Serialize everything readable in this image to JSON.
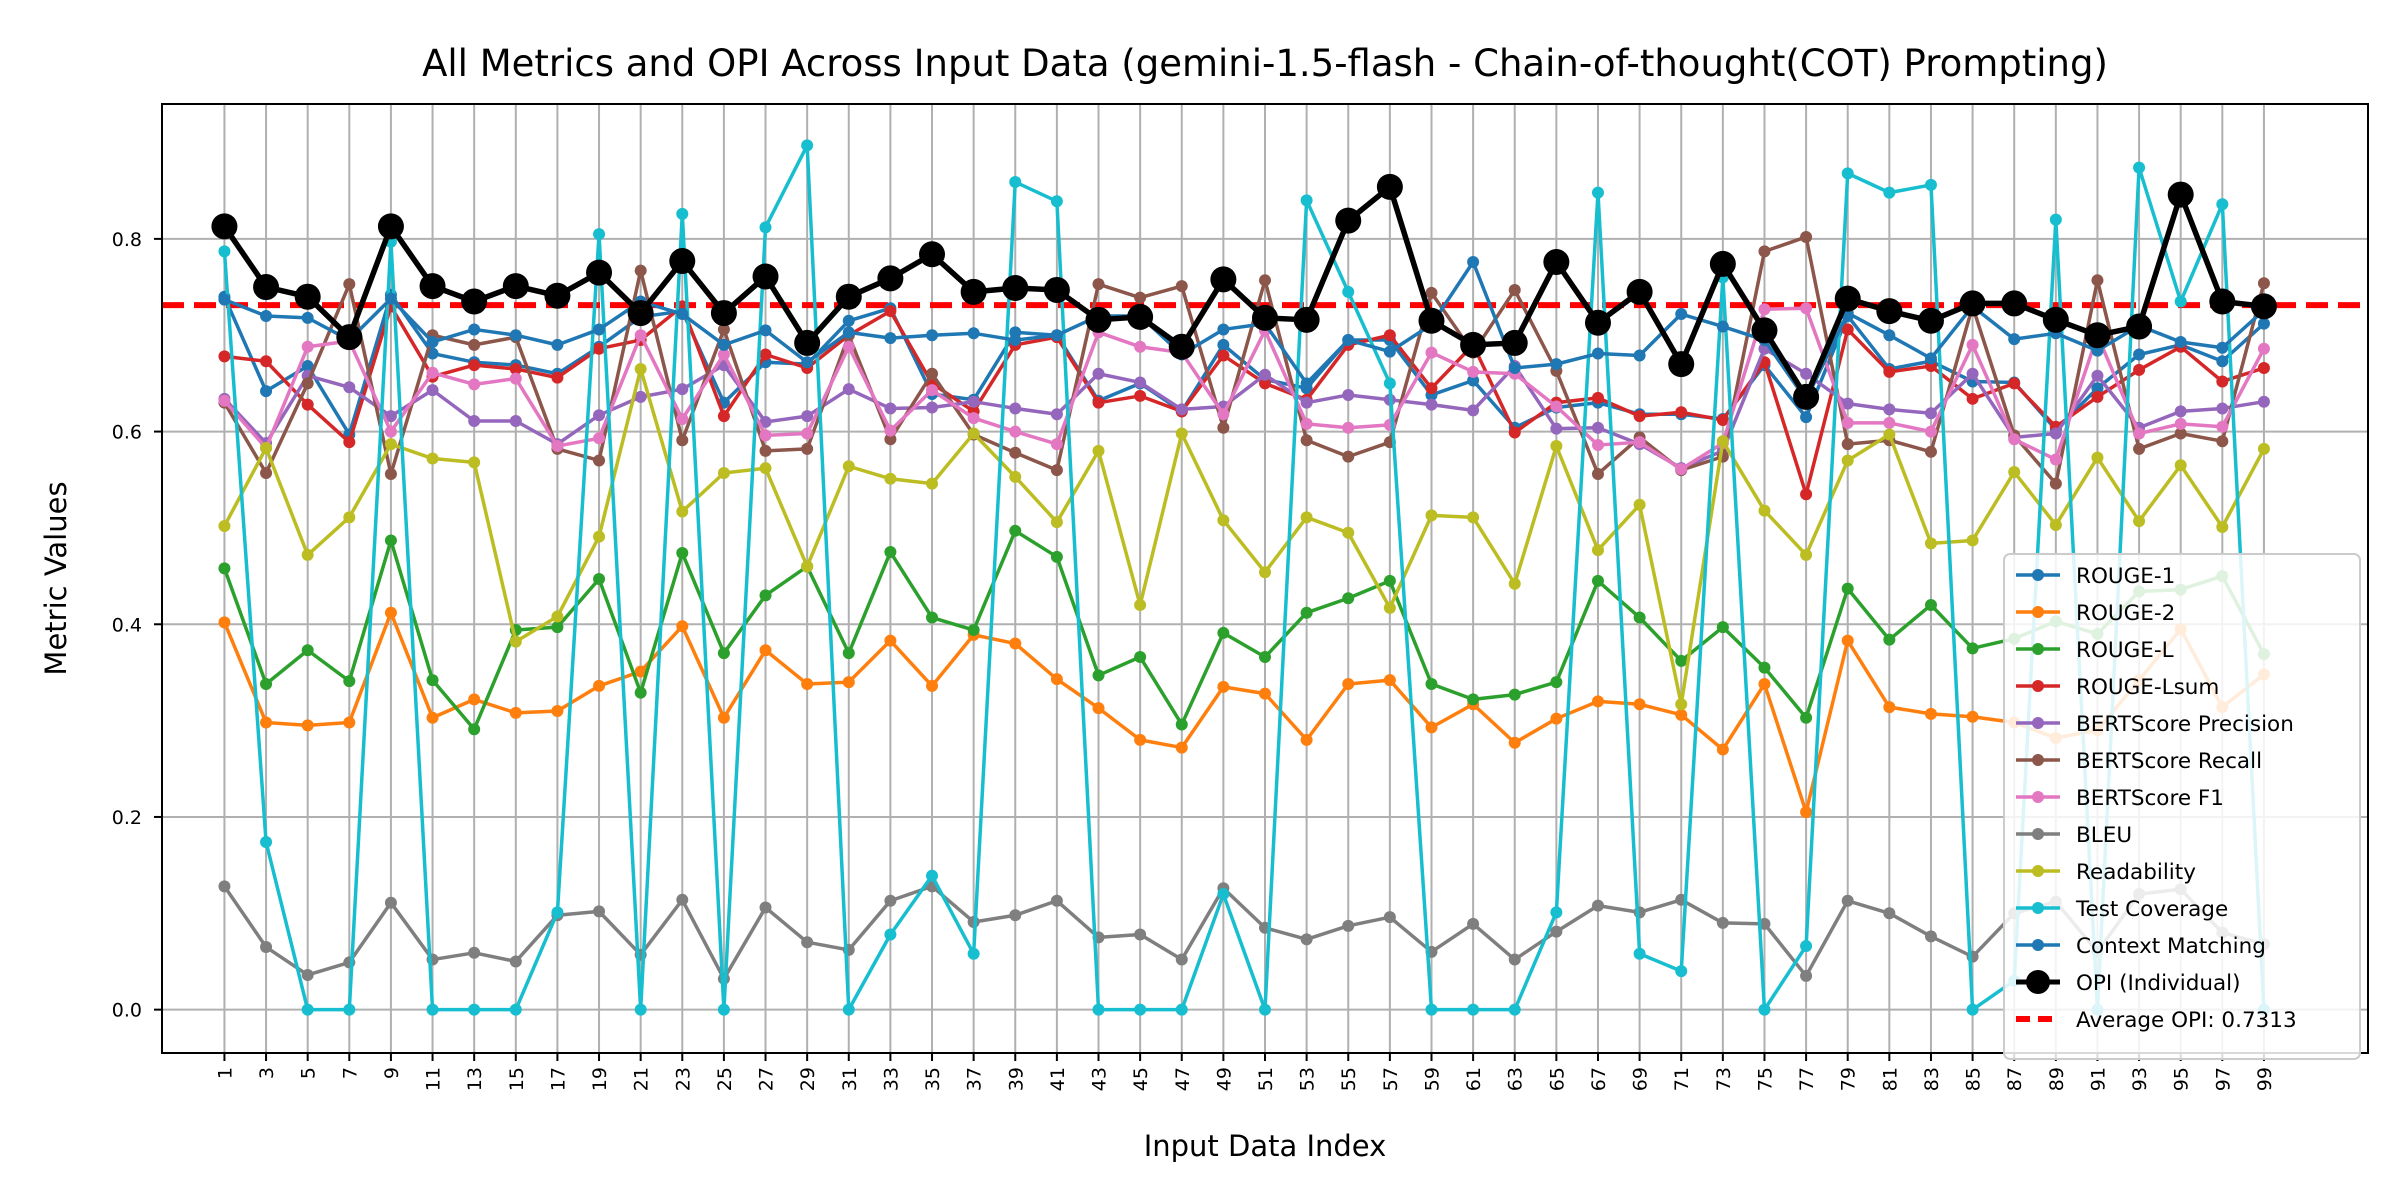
{
  "chart_data": {
    "type": "line",
    "title": "All Metrics and OPI Across Input Data (gemini-1.5-flash - Chain-of-thought(COT) Prompting)",
    "xlabel": "Input Data Index",
    "ylabel": "Metric Values",
    "xlim": [
      -2,
      104
    ],
    "ylim": [
      -0.045,
      0.94
    ],
    "x_ticks": [
      1,
      3,
      5,
      7,
      9,
      11,
      13,
      15,
      17,
      19,
      21,
      23,
      25,
      27,
      29,
      31,
      33,
      35,
      37,
      39,
      41,
      43,
      45,
      47,
      49,
      51,
      53,
      55,
      57,
      59,
      61,
      63,
      65,
      67,
      69,
      71,
      73,
      75,
      77,
      79,
      81,
      83,
      85,
      87,
      89,
      91,
      93,
      95,
      97,
      99
    ],
    "y_ticks": [
      0.0,
      0.2,
      0.4,
      0.6,
      0.8
    ],
    "y_tick_labels": [
      "0.0",
      "0.2",
      "0.4",
      "0.6",
      "0.8"
    ],
    "grid": true,
    "legend_position": "lower-right",
    "x": [
      1,
      3,
      5,
      7,
      9,
      11,
      13,
      15,
      17,
      19,
      21,
      23,
      25,
      27,
      29,
      31,
      33,
      35,
      37,
      39,
      41,
      43,
      45,
      47,
      49,
      51,
      53,
      55,
      57,
      59,
      61,
      63,
      65,
      67,
      69,
      71,
      73,
      75,
      77,
      79,
      81,
      83,
      85,
      87,
      89,
      91,
      93,
      95,
      97,
      99
    ],
    "series": [
      {
        "name": "ROUGE-1",
        "color": "#1f77b4",
        "values": [
          0.74,
          0.642,
          0.668,
          0.597,
          0.742,
          0.681,
          0.672,
          0.669,
          0.66,
          0.688,
          0.719,
          0.725,
          0.63,
          0.672,
          0.67,
          0.715,
          0.728,
          0.639,
          0.633,
          0.703,
          0.7,
          0.632,
          0.65,
          0.621,
          0.69,
          0.654,
          0.645,
          0.695,
          0.695,
          0.638,
          0.653,
          0.604,
          0.625,
          0.63,
          0.618,
          0.618,
          0.613,
          0.669,
          0.615,
          0.72,
          0.665,
          0.673,
          0.652,
          0.651,
          0.602,
          0.645,
          0.68,
          0.69,
          0.673,
          0.712
        ]
      },
      {
        "name": "ROUGE-2",
        "color": "#ff7f0e",
        "values": [
          0.402,
          0.298,
          0.295,
          0.298,
          0.412,
          0.303,
          0.322,
          0.308,
          0.31,
          0.336,
          0.351,
          0.398,
          0.303,
          0.373,
          0.338,
          0.34,
          0.383,
          0.336,
          0.389,
          0.38,
          0.343,
          0.313,
          0.28,
          0.272,
          0.335,
          0.328,
          0.28,
          0.338,
          0.342,
          0.293,
          0.317,
          0.277,
          0.302,
          0.32,
          0.317,
          0.306,
          0.27,
          0.338,
          0.205,
          0.383,
          0.314,
          0.307,
          0.304,
          0.298,
          0.282,
          0.29,
          0.342,
          0.395,
          0.314,
          0.348
        ]
      },
      {
        "name": "ROUGE-L",
        "color": "#2ca02c",
        "values": [
          0.458,
          0.338,
          0.373,
          0.341,
          0.487,
          0.342,
          0.291,
          0.394,
          0.397,
          0.447,
          0.329,
          0.474,
          0.37,
          0.43,
          0.46,
          0.37,
          0.475,
          0.407,
          0.394,
          0.497,
          0.47,
          0.347,
          0.366,
          0.296,
          0.391,
          0.366,
          0.412,
          0.427,
          0.445,
          0.338,
          0.322,
          0.327,
          0.34,
          0.445,
          0.407,
          0.362,
          0.397,
          0.355,
          0.303,
          0.437,
          0.384,
          0.42,
          0.375,
          0.385,
          0.403,
          0.39,
          0.434,
          0.436,
          0.45,
          0.369
        ]
      },
      {
        "name": "ROUGE-Lsum",
        "color": "#d62728",
        "values": [
          0.678,
          0.673,
          0.628,
          0.589,
          0.73,
          0.657,
          0.669,
          0.665,
          0.656,
          0.686,
          0.695,
          0.73,
          0.616,
          0.68,
          0.666,
          0.7,
          0.725,
          0.65,
          0.621,
          0.69,
          0.698,
          0.63,
          0.637,
          0.621,
          0.679,
          0.65,
          0.633,
          0.69,
          0.7,
          0.645,
          0.69,
          0.599,
          0.63,
          0.635,
          0.616,
          0.62,
          0.612,
          0.672,
          0.535,
          0.706,
          0.662,
          0.668,
          0.634,
          0.65,
          0.605,
          0.636,
          0.664,
          0.688,
          0.652,
          0.666
        ]
      },
      {
        "name": "BERTScore Precision",
        "color": "#9467bd",
        "values": [
          0.634,
          0.588,
          0.658,
          0.646,
          0.616,
          0.643,
          0.611,
          0.611,
          0.587,
          0.617,
          0.636,
          0.644,
          0.669,
          0.61,
          0.616,
          0.644,
          0.624,
          0.625,
          0.631,
          0.624,
          0.618,
          0.66,
          0.651,
          0.623,
          0.626,
          0.659,
          0.63,
          0.638,
          0.633,
          0.628,
          0.622,
          0.668,
          0.603,
          0.604,
          0.587,
          0.562,
          0.58,
          0.686,
          0.66,
          0.629,
          0.623,
          0.619,
          0.66,
          0.594,
          0.598,
          0.658,
          0.604,
          0.621,
          0.624,
          0.631
        ]
      },
      {
        "name": "BERTScore Recall",
        "color": "#8c564b",
        "values": [
          0.63,
          0.557,
          0.65,
          0.753,
          0.556,
          0.7,
          0.69,
          0.698,
          0.582,
          0.57,
          0.767,
          0.591,
          0.706,
          0.58,
          0.582,
          0.7,
          0.592,
          0.66,
          0.597,
          0.578,
          0.56,
          0.753,
          0.739,
          0.751,
          0.604,
          0.757,
          0.591,
          0.574,
          0.589,
          0.744,
          0.682,
          0.747,
          0.663,
          0.556,
          0.594,
          0.56,
          0.574,
          0.787,
          0.802,
          0.587,
          0.591,
          0.579,
          0.73,
          0.596,
          0.546,
          0.757,
          0.582,
          0.598,
          0.59,
          0.754
        ]
      },
      {
        "name": "BERTScore F1",
        "color": "#e377c2",
        "values": [
          0.632,
          0.583,
          0.688,
          0.694,
          0.6,
          0.661,
          0.649,
          0.655,
          0.585,
          0.593,
          0.7,
          0.613,
          0.68,
          0.596,
          0.598,
          0.688,
          0.601,
          0.643,
          0.614,
          0.6,
          0.587,
          0.703,
          0.688,
          0.682,
          0.618,
          0.705,
          0.608,
          0.604,
          0.607,
          0.682,
          0.662,
          0.66,
          0.626,
          0.586,
          0.589,
          0.561,
          0.588,
          0.727,
          0.728,
          0.609,
          0.609,
          0.6,
          0.69,
          0.592,
          0.571,
          0.7,
          0.598,
          0.608,
          0.605,
          0.686
        ]
      },
      {
        "name": "BLEU",
        "color": "#7f7f7f",
        "values": [
          0.128,
          0.065,
          0.036,
          0.049,
          0.111,
          0.052,
          0.059,
          0.05,
          0.098,
          0.102,
          0.057,
          0.114,
          0.032,
          0.106,
          0.07,
          0.062,
          0.113,
          0.128,
          0.091,
          0.098,
          0.113,
          0.075,
          0.078,
          0.052,
          0.126,
          0.085,
          0.073,
          0.087,
          0.096,
          0.06,
          0.089,
          0.052,
          0.081,
          0.108,
          0.101,
          0.114,
          0.09,
          0.089,
          0.035,
          0.113,
          0.1,
          0.076,
          0.055,
          0.1,
          0.112,
          0.06,
          0.12,
          0.125,
          0.08,
          0.068
        ]
      },
      {
        "name": "Readability",
        "color": "#bcbd22",
        "values": [
          0.502,
          0.583,
          0.472,
          0.511,
          0.587,
          0.572,
          0.568,
          0.382,
          0.408,
          0.491,
          0.665,
          0.517,
          0.557,
          0.562,
          0.46,
          0.564,
          0.551,
          0.546,
          0.598,
          0.553,
          0.506,
          0.58,
          0.42,
          0.598,
          0.508,
          0.454,
          0.511,
          0.495,
          0.417,
          0.513,
          0.511,
          0.442,
          0.585,
          0.477,
          0.524,
          0.317,
          0.59,
          0.518,
          0.472,
          0.57,
          0.597,
          0.484,
          0.487,
          0.558,
          0.503,
          0.573,
          0.507,
          0.565,
          0.501,
          0.582
        ]
      },
      {
        "name": "Test Coverage",
        "color": "#17becf",
        "values": [
          0.787,
          0.174,
          0.0,
          0.0,
          0.797,
          0.0,
          0.0,
          0.0,
          0.101,
          0.805,
          0.0,
          0.826,
          0.0,
          0.812,
          0.897,
          0.0,
          0.078,
          0.139,
          0.058,
          0.859,
          0.839,
          0.0,
          0.0,
          0.0,
          0.12,
          0.0,
          0.84,
          0.745,
          0.65,
          0.0,
          0.0,
          0.0,
          0.101,
          0.848,
          0.058,
          0.04,
          0.76,
          0.0,
          0.066,
          0.868,
          0.848,
          0.856,
          0.0,
          0.03,
          0.82,
          0.0,
          0.874,
          0.735,
          0.836,
          0.0
        ]
      },
      {
        "name": "Context Matching",
        "color": "#1f77b4",
        "values": [
          0.737,
          0.72,
          0.718,
          0.695,
          0.738,
          0.693,
          0.706,
          0.7,
          0.69,
          0.706,
          0.735,
          0.722,
          0.69,
          0.705,
          0.672,
          0.703,
          0.697,
          0.7,
          0.702,
          0.695,
          0.7,
          0.72,
          0.72,
          0.68,
          0.706,
          0.712,
          0.65,
          0.695,
          0.683,
          0.711,
          0.776,
          0.666,
          0.67,
          0.681,
          0.679,
          0.722,
          0.709,
          0.695,
          0.633,
          0.723,
          0.7,
          0.676,
          0.73,
          0.696,
          0.702,
          0.684,
          0.71,
          0.693,
          0.687,
          0.726
        ]
      },
      {
        "name": "OPI (Individual)",
        "color": "#000000",
        "opi": true,
        "values": [
          0.813,
          0.75,
          0.74,
          0.698,
          0.813,
          0.751,
          0.735,
          0.751,
          0.741,
          0.765,
          0.723,
          0.777,
          0.723,
          0.761,
          0.692,
          0.74,
          0.759,
          0.784,
          0.745,
          0.749,
          0.747,
          0.716,
          0.719,
          0.688,
          0.758,
          0.718,
          0.716,
          0.819,
          0.854,
          0.715,
          0.69,
          0.692,
          0.776,
          0.713,
          0.745,
          0.67,
          0.774,
          0.705,
          0.636,
          0.738,
          0.725,
          0.715,
          0.733,
          0.733,
          0.716,
          0.7,
          0.709,
          0.846,
          0.735,
          0.73
        ]
      }
    ],
    "average_line": {
      "label": "Average OPI: 0.7313",
      "value": 0.7313,
      "color": "#ff0000"
    }
  }
}
